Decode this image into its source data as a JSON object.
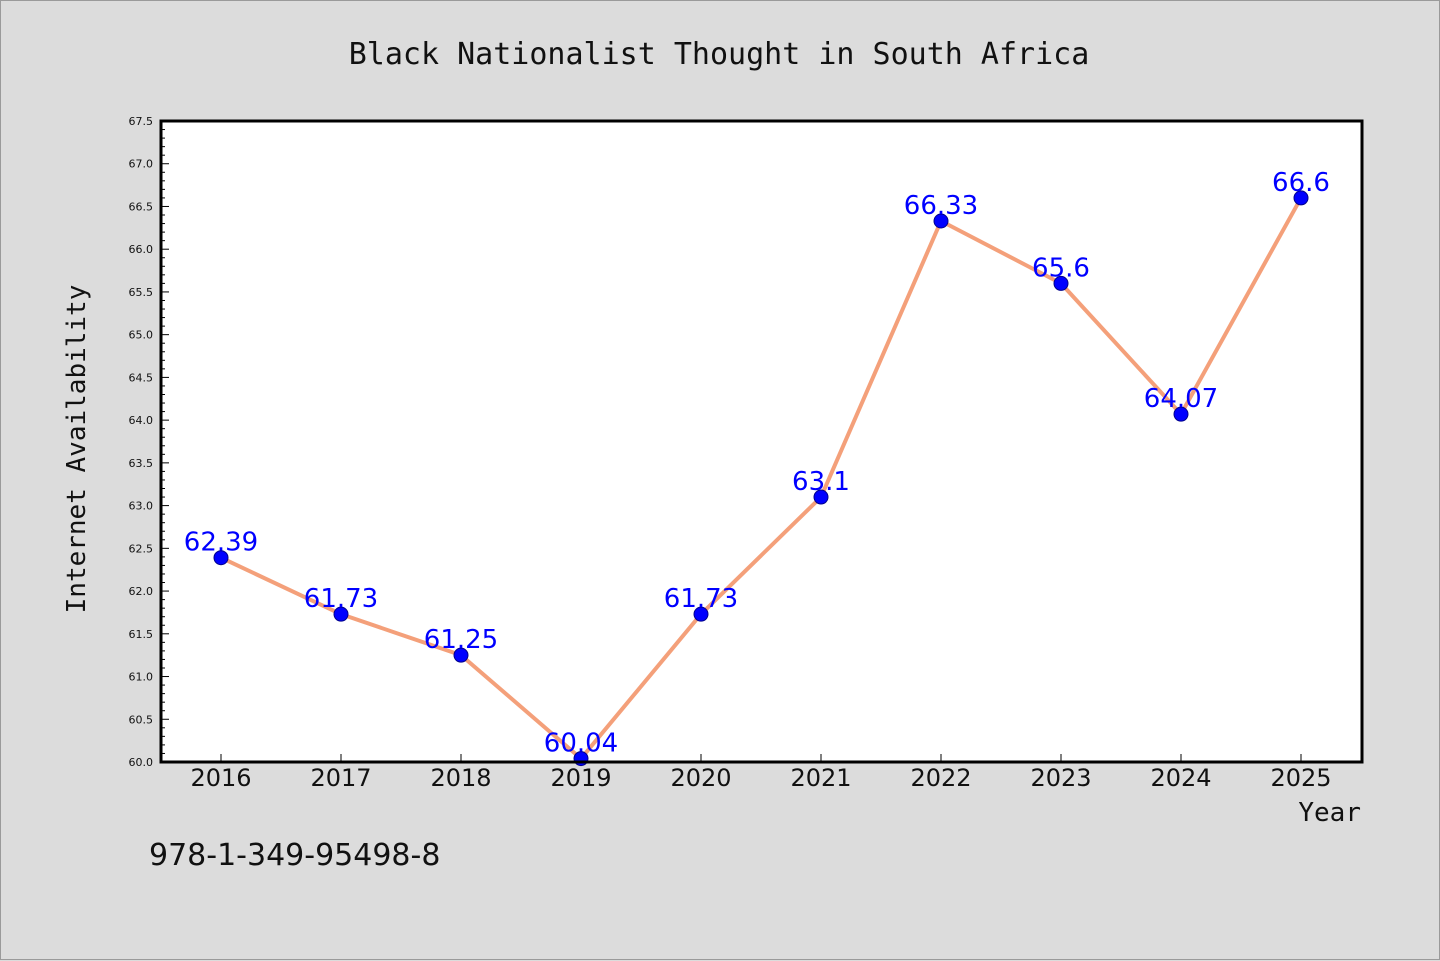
{
  "chart_data": {
    "type": "line",
    "title": "Black Nationalist Thought in South Africa",
    "xlabel": "Year",
    "ylabel": "Internet Availability",
    "categories": [
      "2016",
      "2017",
      "2018",
      "2019",
      "2020",
      "2021",
      "2022",
      "2023",
      "2024",
      "2025"
    ],
    "series": [
      {
        "values": [
          62.39,
          61.73,
          61.25,
          60.04,
          61.73,
          63.1,
          66.33,
          65.6,
          64.07,
          66.6
        ],
        "line_color": "#f4a07a",
        "marker_color": "#0000ff"
      }
    ],
    "data_labels": [
      "62.39",
      "61.73",
      "61.25",
      "60.04",
      "61.73",
      "63.1",
      "66.33",
      "65.6",
      "64.07",
      "66.6"
    ],
    "ylim": [
      60.0,
      67.5
    ],
    "yticks": [
      "60.0",
      "60.5",
      "61.0",
      "61.5",
      "62.0",
      "62.5",
      "63.0",
      "63.5",
      "64.0",
      "64.5",
      "65.0",
      "65.5",
      "66.0",
      "66.5",
      "67.0",
      "67.5"
    ],
    "grid": false,
    "legend": "none"
  },
  "annotation": {
    "isbn": "978-1-349-95498-8"
  }
}
